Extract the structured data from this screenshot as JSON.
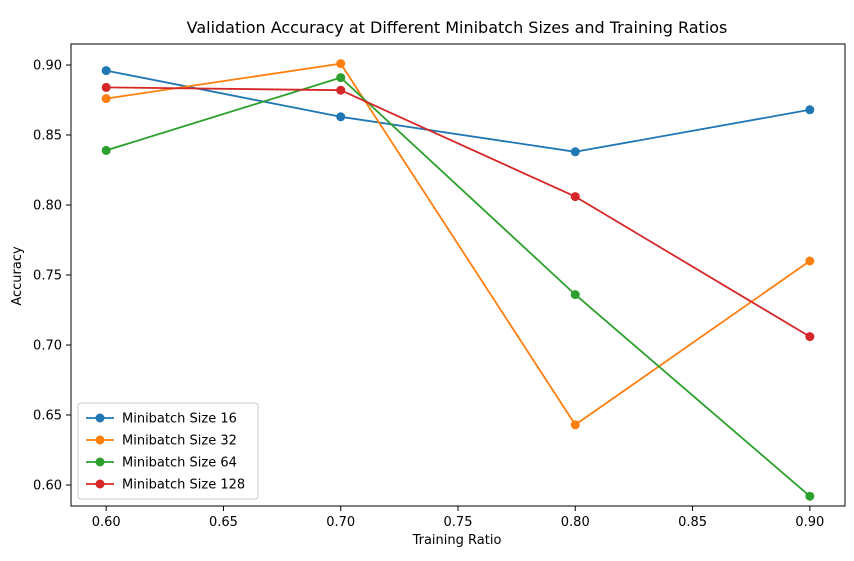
{
  "chart_data": {
    "type": "line",
    "title": "Validation Accuracy at Different Minibatch Sizes and Training Ratios",
    "xlabel": "Training Ratio",
    "ylabel": "Accuracy",
    "x": [
      0.6,
      0.7,
      0.8,
      0.9
    ],
    "xlim": [
      0.585,
      0.915
    ],
    "ylim": [
      0.585,
      0.915
    ],
    "xticks": [
      "0.60",
      "0.65",
      "0.70",
      "0.75",
      "0.80",
      "0.85",
      "0.90"
    ],
    "yticks": [
      "0.60",
      "0.65",
      "0.70",
      "0.75",
      "0.80",
      "0.85",
      "0.90"
    ],
    "grid": false,
    "legend_position": "lower-left",
    "series": [
      {
        "name": "Minibatch Size 16",
        "color": "#1f77b4",
        "values": [
          0.896,
          0.863,
          0.838,
          0.868
        ]
      },
      {
        "name": "Minibatch Size 32",
        "color": "#ff7f0e",
        "values": [
          0.876,
          0.901,
          0.643,
          0.76
        ]
      },
      {
        "name": "Minibatch Size 64",
        "color": "#2ca02c",
        "values": [
          0.839,
          0.891,
          0.736,
          0.592
        ]
      },
      {
        "name": "Minibatch Size 128",
        "color": "#d62728",
        "values": [
          0.884,
          0.882,
          0.806,
          0.706
        ]
      }
    ]
  }
}
